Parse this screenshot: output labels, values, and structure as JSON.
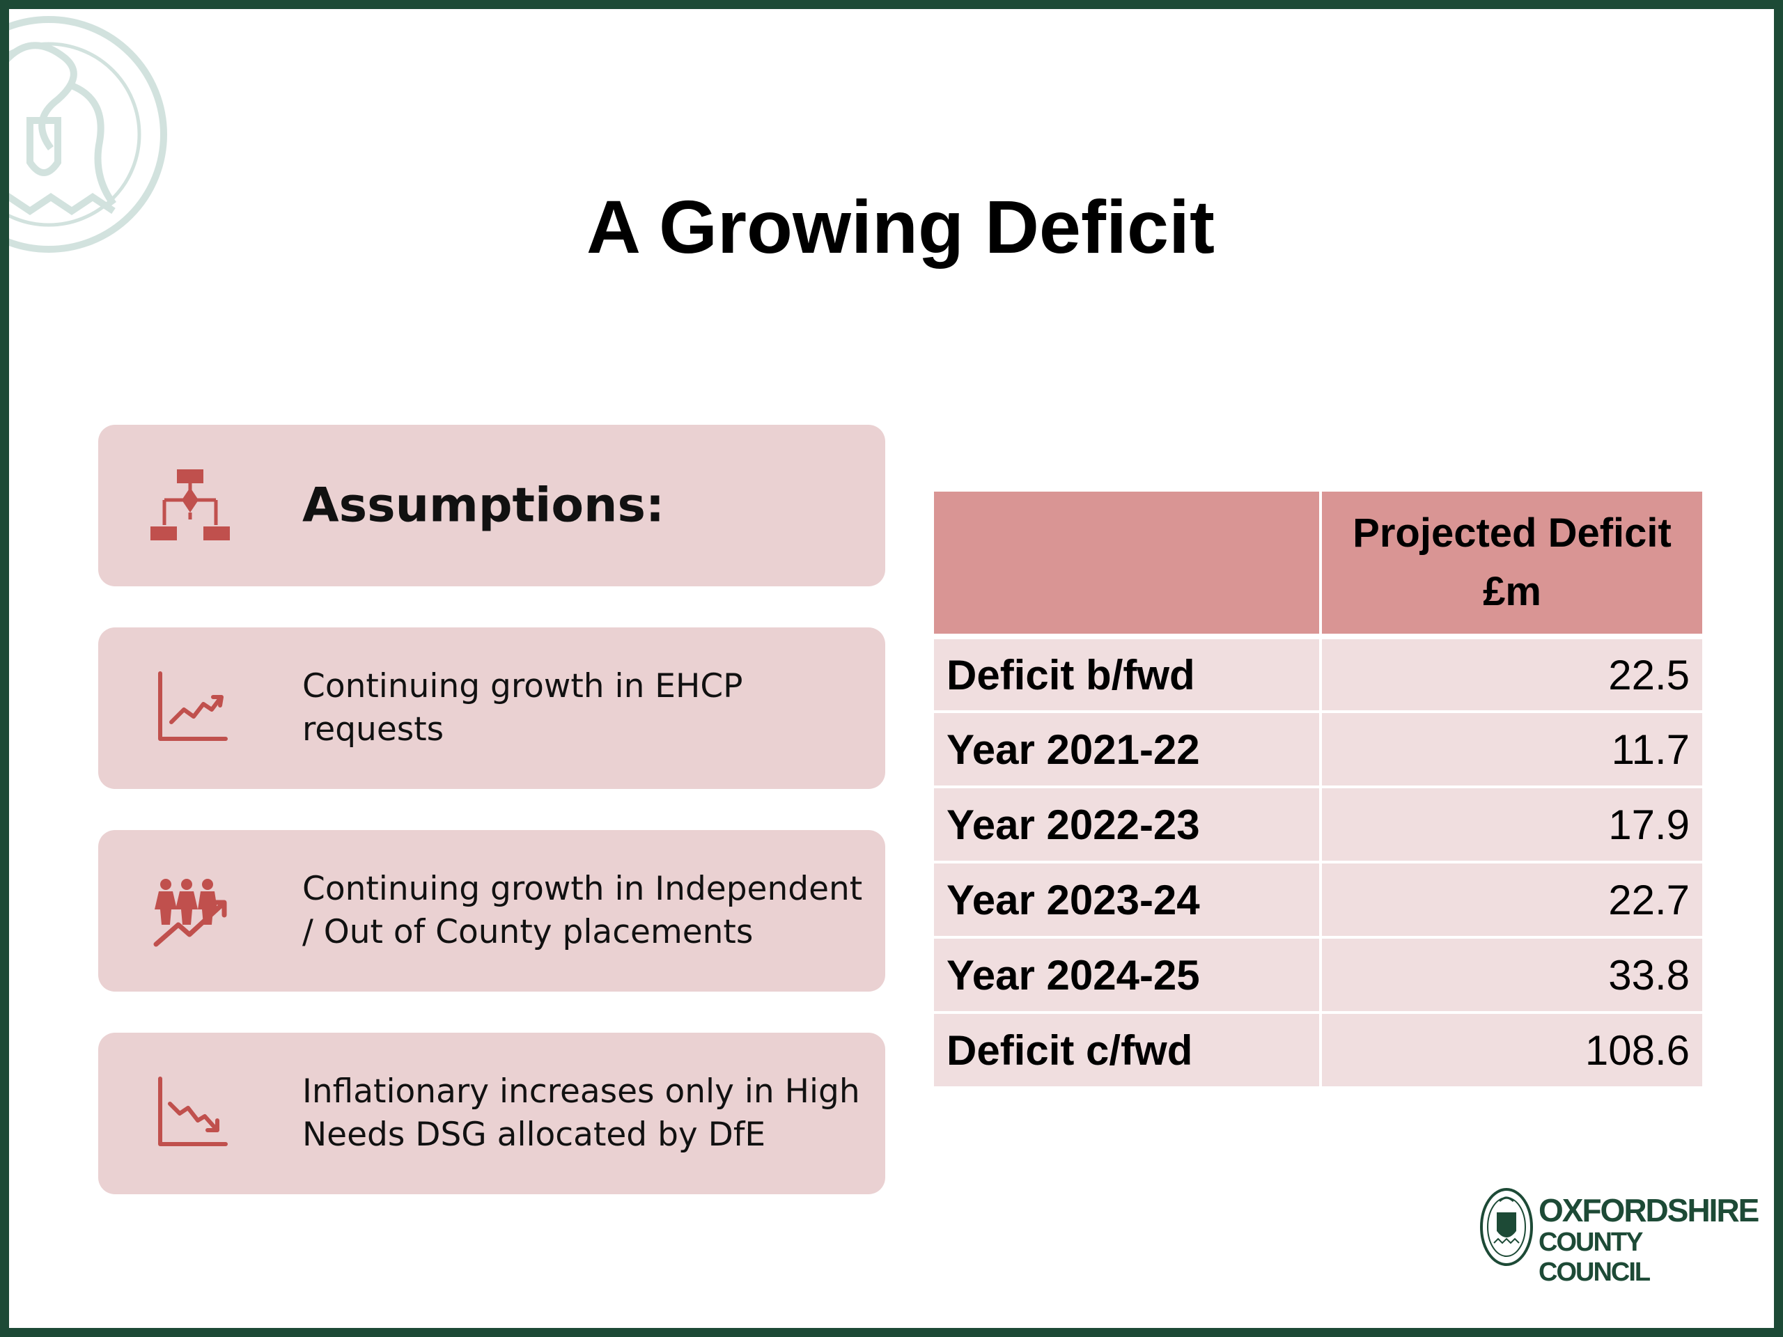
{
  "slide": {
    "title": "A Growing Deficit",
    "accent_color": "#c0504d",
    "card_color": "#ead1d2",
    "frame_color": "#1d4a36"
  },
  "assumptions": {
    "heading": "Assumptions:",
    "heading_icon": "hierarchy-icon",
    "items": [
      {
        "text": "Continuing growth in EHCP requests",
        "icon": "chart-trending-up-icon"
      },
      {
        "text": "Continuing growth in Independent / Out of County placements",
        "icon": "people-growth-icon"
      },
      {
        "text": "Inflationary increases only in High Needs DSG allocated by DfE",
        "icon": "chart-trending-down-icon"
      }
    ]
  },
  "table": {
    "header": {
      "col1": "",
      "col2": "Projected Deficit £m"
    },
    "rows": [
      {
        "label": "Deficit b/fwd",
        "value": "22.5"
      },
      {
        "label": "Year 2021-22",
        "value": "11.7"
      },
      {
        "label": "Year 2022-23",
        "value": "17.9"
      },
      {
        "label": "Year 2023-24",
        "value": "22.7"
      },
      {
        "label": "Year 2024-25",
        "value": "33.8"
      },
      {
        "label": "Deficit c/fwd",
        "value": "108.6"
      }
    ]
  },
  "logo": {
    "line1": "OXFORDSHIRE",
    "line2": "COUNTY COUNCIL"
  }
}
